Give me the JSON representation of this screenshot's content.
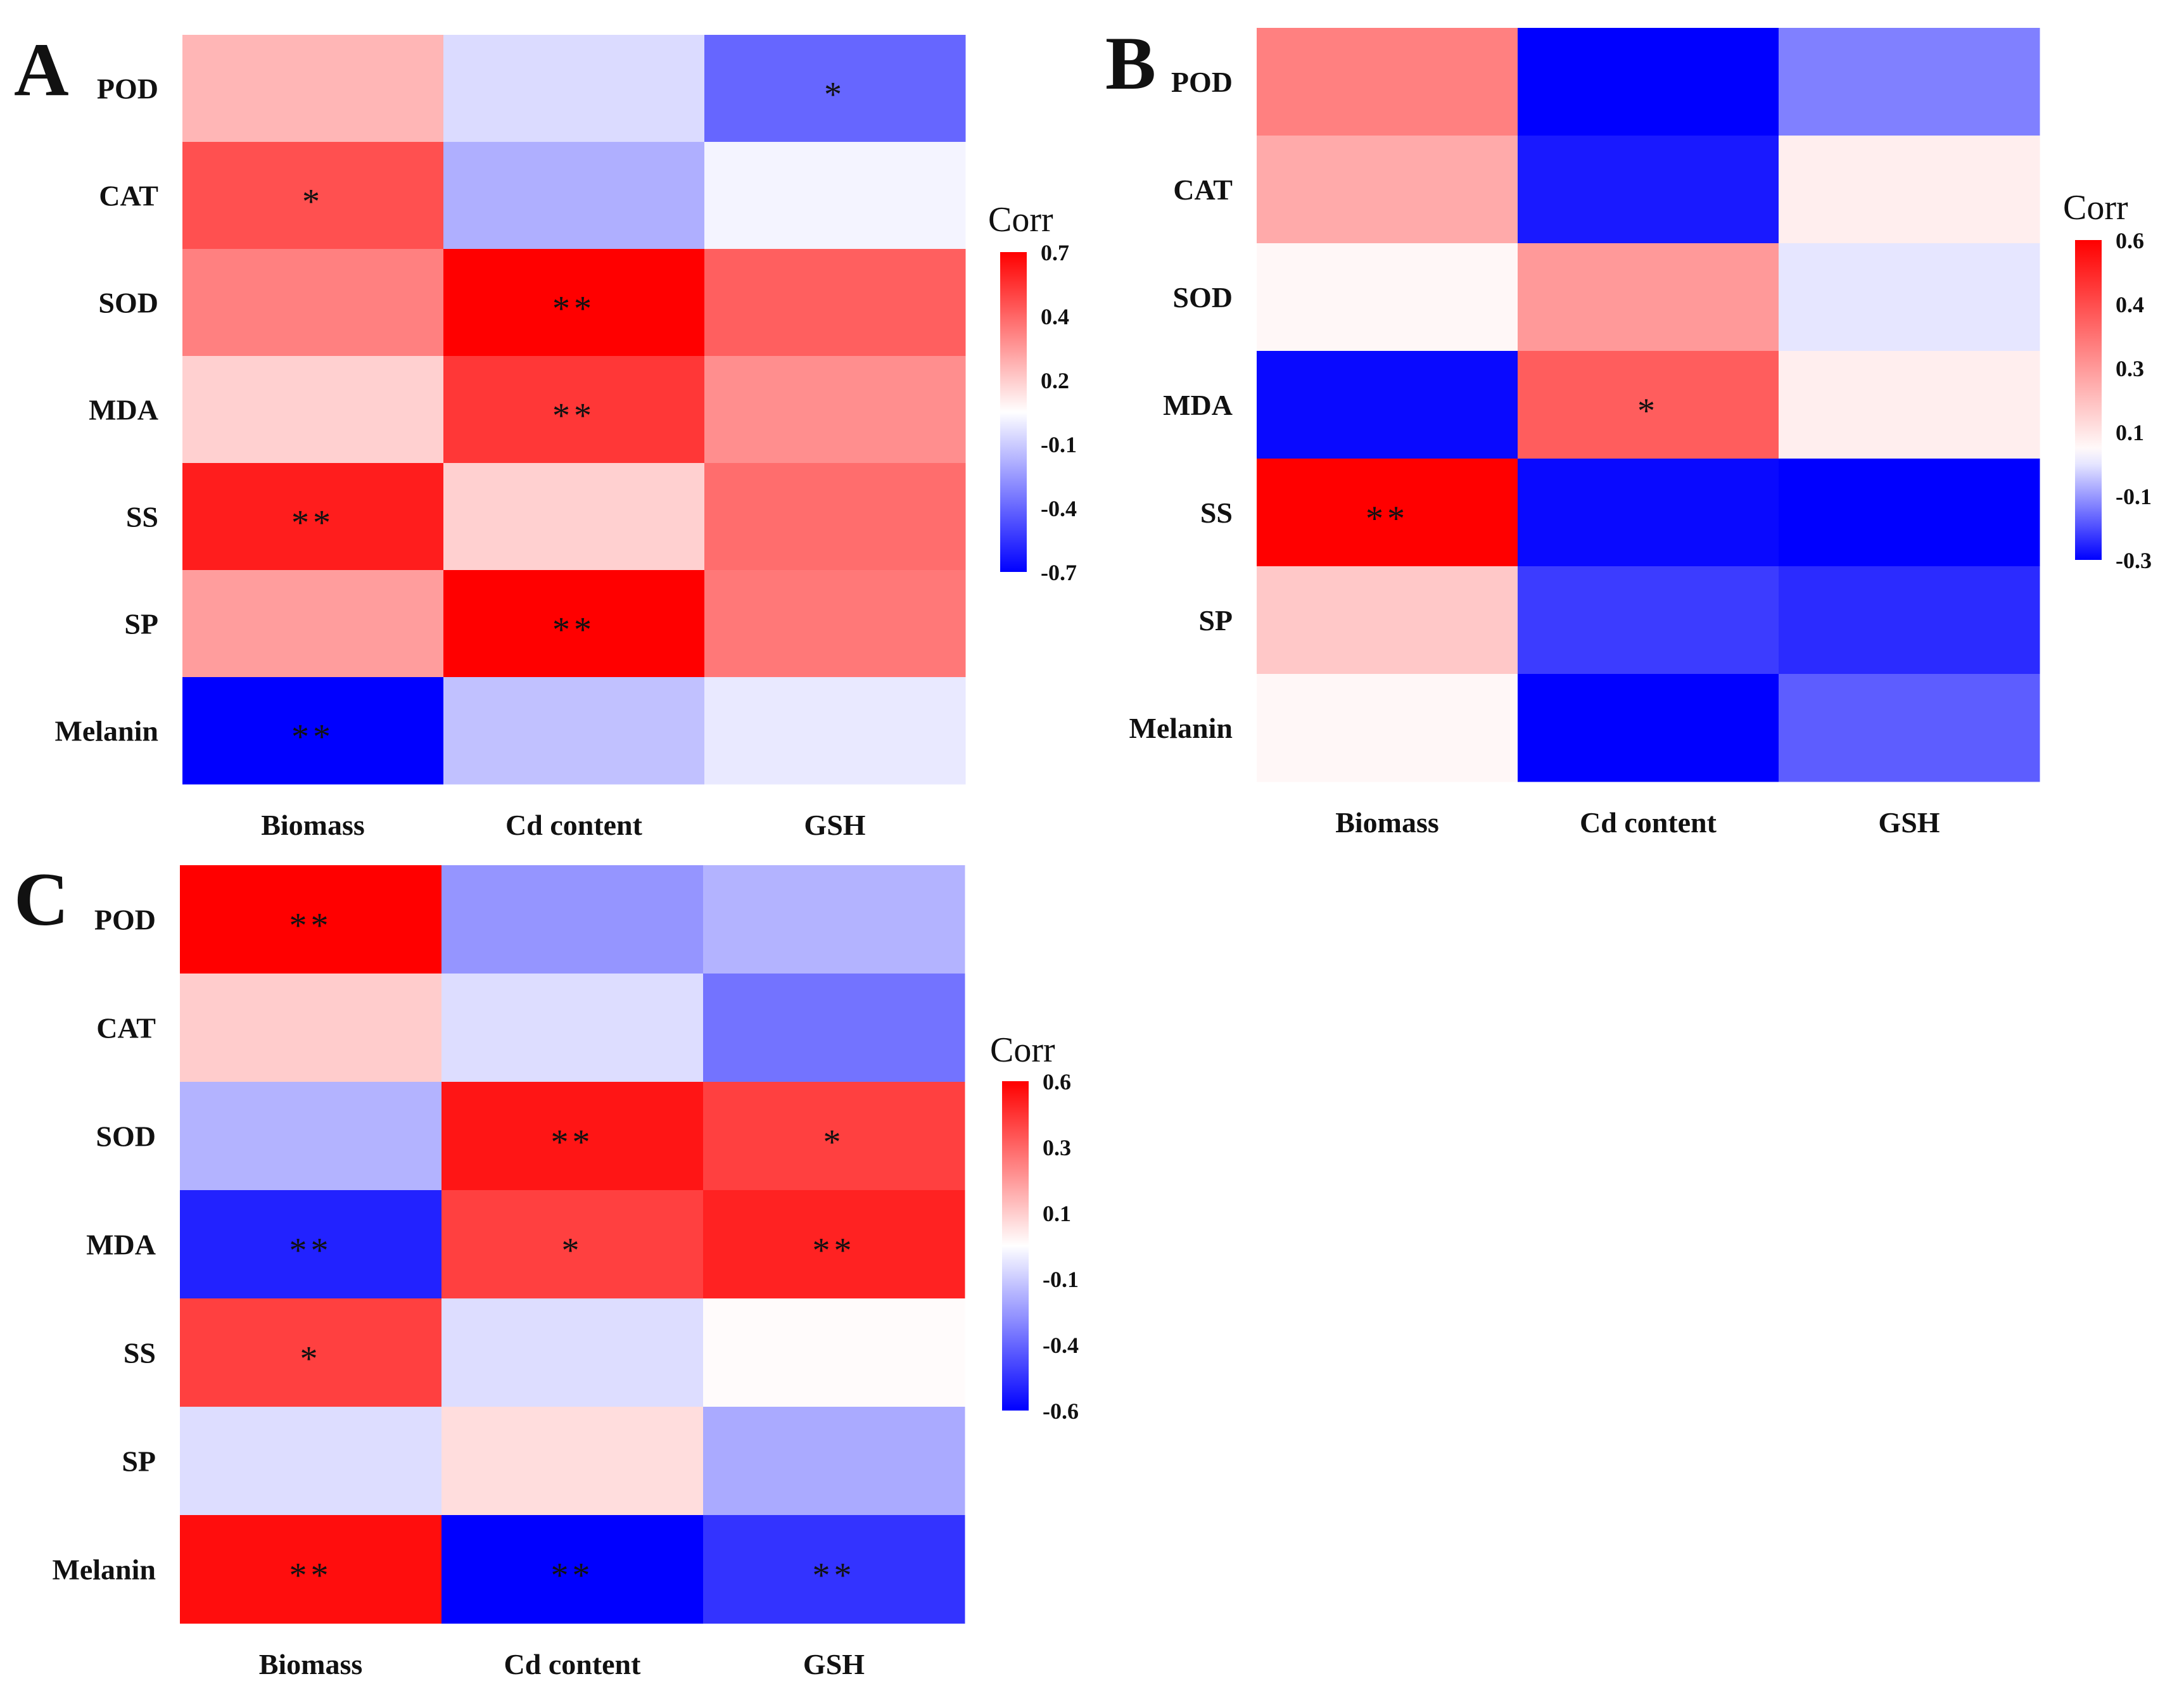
{
  "chart_data": [
    {
      "type": "heatmap",
      "panel": "A",
      "rows": [
        "POD",
        "CAT",
        "SOD",
        "MDA",
        "SS",
        "SP",
        "Melanin"
      ],
      "columns": [
        "Biomass",
        "Cd content",
        "GSH"
      ],
      "values": [
        [
          0.2,
          -0.1,
          -0.42
        ],
        [
          0.48,
          -0.22,
          -0.03
        ],
        [
          0.35,
          0.7,
          0.44
        ],
        [
          0.13,
          0.55,
          0.31
        ],
        [
          0.62,
          0.13,
          0.4
        ],
        [
          0.27,
          0.7,
          0.37
        ],
        [
          -0.7,
          -0.17,
          -0.06
        ]
      ],
      "significance": [
        [
          "",
          "",
          "*"
        ],
        [
          "*",
          "",
          ""
        ],
        [
          "",
          "**",
          ""
        ],
        [
          "",
          "**",
          ""
        ],
        [
          "**",
          "",
          ""
        ],
        [
          "",
          "**",
          ""
        ],
        [
          "**",
          "",
          ""
        ]
      ],
      "legend_title": "Corr",
      "legend_ticks": [
        "0.7",
        "0.4",
        "0.2",
        "-0.1",
        "-0.4",
        "-0.7"
      ],
      "legend_range": [
        -0.7,
        0.7
      ]
    },
    {
      "type": "heatmap",
      "panel": "B",
      "rows": [
        "POD",
        "CAT",
        "SOD",
        "MDA",
        "SS",
        "SP",
        "Melanin"
      ],
      "columns": [
        "Biomass",
        "Cd content",
        "GSH"
      ],
      "values": [
        [
          0.3,
          -0.3,
          -0.15
        ],
        [
          0.2,
          -0.27,
          0.04
        ],
        [
          0.02,
          0.24,
          -0.03
        ],
        [
          -0.29,
          0.38,
          0.04
        ],
        [
          0.6,
          -0.29,
          -0.3
        ],
        [
          0.13,
          -0.23,
          -0.25
        ],
        [
          0.02,
          -0.3,
          -0.19
        ]
      ],
      "significance": [
        [
          "",
          "",
          ""
        ],
        [
          "",
          "",
          ""
        ],
        [
          "",
          "",
          ""
        ],
        [
          "",
          "*",
          ""
        ],
        [
          "**",
          "",
          ""
        ],
        [
          "",
          "",
          ""
        ],
        [
          "",
          "",
          ""
        ]
      ],
      "legend_title": "Corr",
      "legend_ticks": [
        "0.6",
        "0.4",
        "0.3",
        "0.1",
        "-0.1",
        "-0.3"
      ],
      "legend_range": [
        -0.3,
        0.6
      ]
    },
    {
      "type": "heatmap",
      "panel": "C",
      "rows": [
        "POD",
        "CAT",
        "SOD",
        "MDA",
        "SS",
        "SP",
        "Melanin"
      ],
      "columns": [
        "Biomass",
        "Cd content",
        "GSH"
      ],
      "values": [
        [
          0.6,
          -0.25,
          -0.18
        ],
        [
          0.12,
          -0.08,
          -0.33
        ],
        [
          -0.18,
          0.55,
          0.45
        ],
        [
          -0.52,
          0.45,
          0.52
        ],
        [
          0.45,
          -0.08,
          0.01
        ],
        [
          -0.08,
          0.08,
          -0.2
        ],
        [
          0.57,
          -0.6,
          -0.48
        ]
      ],
      "significance": [
        [
          "**",
          "",
          ""
        ],
        [
          "",
          "",
          ""
        ],
        [
          "",
          "**",
          "*"
        ],
        [
          "**",
          "*",
          "**"
        ],
        [
          "*",
          "",
          ""
        ],
        [
          "",
          "",
          ""
        ],
        [
          "**",
          "**",
          "**"
        ]
      ],
      "legend_title": "Corr",
      "legend_ticks": [
        "0.6",
        "0.3",
        "0.1",
        "-0.1",
        "-0.4",
        "-0.6"
      ],
      "legend_range": [
        -0.6,
        0.6
      ]
    }
  ]
}
